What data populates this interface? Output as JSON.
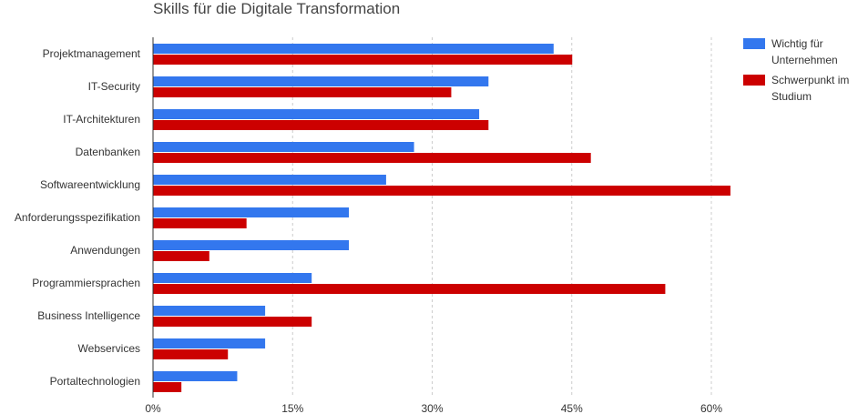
{
  "chart_data": {
    "type": "bar",
    "orientation": "horizontal",
    "title": "Skills für die Digitale Transformation",
    "xlabel": "",
    "ylabel": "",
    "categories": [
      "Projektmanagement",
      "IT-Security",
      "IT-Architekturen",
      "Datenbanken",
      "Softwareentwicklung",
      "Anforderungsspezifikation",
      "Anwendungen",
      "Programmiersprachen",
      "Business Intelligence",
      "Webservices",
      "Portaltechnologien"
    ],
    "series": [
      {
        "name": "Wichtig für Unternehmen",
        "name_lines": [
          "Wichtig für",
          "Unternehmen"
        ],
        "color": "#3377ee",
        "values": [
          43,
          36,
          35,
          28,
          25,
          21,
          21,
          17,
          12,
          12,
          9
        ]
      },
      {
        "name": "Schwerpunkt im Studium",
        "name_lines": [
          "Schwerpunkt im",
          "Studium"
        ],
        "color": "#cc0000",
        "values": [
          45,
          32,
          36,
          47,
          62,
          10,
          6,
          55,
          17,
          8,
          3
        ]
      }
    ],
    "xlim": [
      0,
      75
    ],
    "xticks": [
      0,
      15,
      30,
      45,
      60
    ],
    "xtick_labels": [
      "0%",
      "15%",
      "30%",
      "45%",
      "60%"
    ],
    "grid": true,
    "legend": "top-right"
  }
}
